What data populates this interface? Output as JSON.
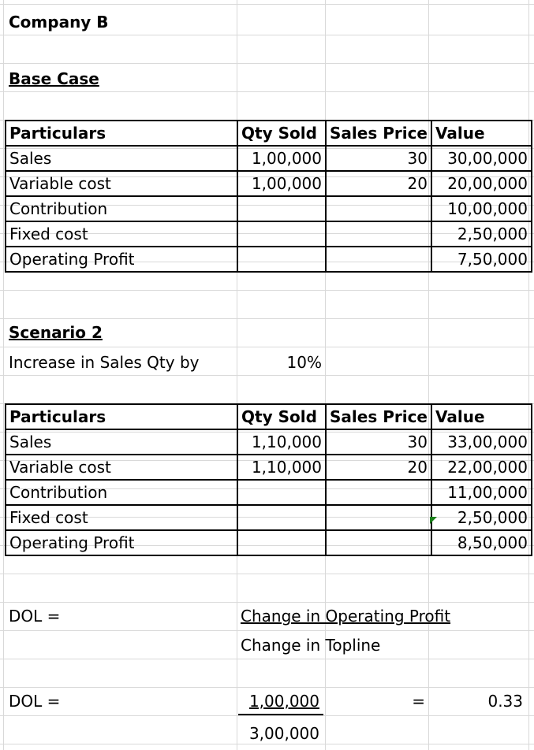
{
  "sheet": {
    "company": "Company B",
    "base_case": {
      "title": "Base Case",
      "headers": [
        "Particulars",
        "Qty Sold",
        "Sales Price",
        "Value"
      ],
      "rows": [
        [
          "Sales",
          "1,00,000",
          "30",
          "30,00,000"
        ],
        [
          "Variable cost",
          "1,00,000",
          "20",
          "20,00,000"
        ],
        [
          "Contribution",
          "",
          "",
          "10,00,000"
        ],
        [
          "Fixed cost",
          "",
          "",
          "2,50,000"
        ],
        [
          "Operating Profit",
          "",
          "",
          "7,50,000"
        ]
      ]
    },
    "scenario2": {
      "title": "Scenario 2",
      "increase_label": "Increase in Sales Qty by",
      "increase_value": "10%",
      "headers": [
        "Particulars",
        "Qty Sold",
        "Sales Price",
        "Value"
      ],
      "rows": [
        [
          "Sales",
          "1,10,000",
          "30",
          "33,00,000"
        ],
        [
          "Variable cost",
          "1,10,000",
          "20",
          "22,00,000"
        ],
        [
          "Contribution",
          "",
          "",
          "11,00,000"
        ],
        [
          "Fixed cost",
          "",
          "",
          "2,50,000"
        ],
        [
          "Operating Profit",
          "",
          "",
          "8,50,000"
        ]
      ]
    },
    "dol_formula": {
      "label": "DOL =",
      "numerator": "Change in Operating Profit",
      "denominator": "Change in Topline"
    },
    "dol_calc": {
      "label": "DOL =",
      "numerator": "1,00,000",
      "denominator": "3,00,000",
      "equals": "=",
      "result": "0.33"
    }
  }
}
